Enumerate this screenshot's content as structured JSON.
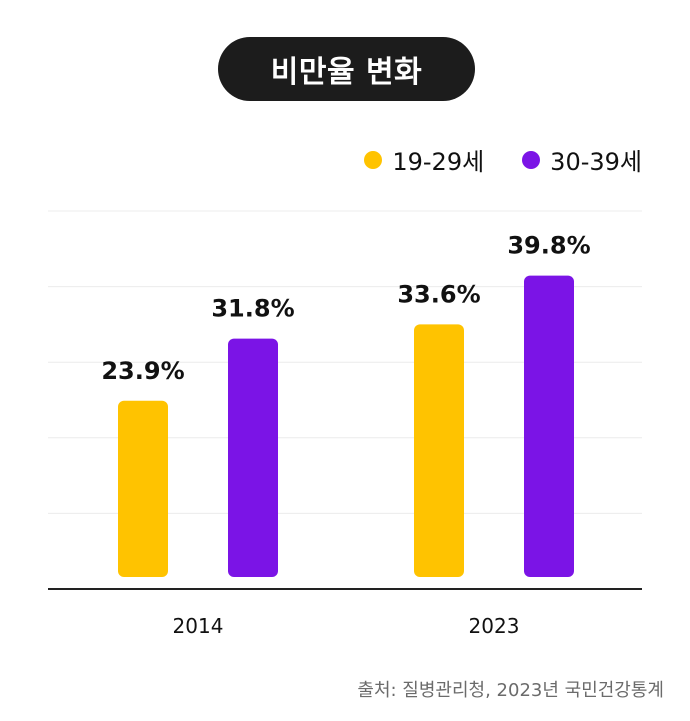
{
  "title": "비만율 변화",
  "legend": [
    {
      "label": "19-29세",
      "color": "#FFC300"
    },
    {
      "label": "30-39세",
      "color": "#7B14E6"
    }
  ],
  "chart_data": {
    "type": "bar",
    "title": "비만율 변화",
    "categories": [
      "2014",
      "2023"
    ],
    "series": [
      {
        "name": "19-29세",
        "color": "#FFC300",
        "values": [
          23.9,
          33.6
        ],
        "labels": [
          "23.9%",
          "33.6%"
        ]
      },
      {
        "name": "30-39세",
        "color": "#7B14E6",
        "values": [
          31.8,
          39.8
        ],
        "labels": [
          "31.8%",
          "39.8%"
        ]
      }
    ],
    "ylim": [
      0,
      48
    ],
    "grid": true,
    "xlabel": "",
    "ylabel": "",
    "legend_position": "top-right"
  },
  "source": "출처: 질병관리청, 2023년 국민건강통계"
}
